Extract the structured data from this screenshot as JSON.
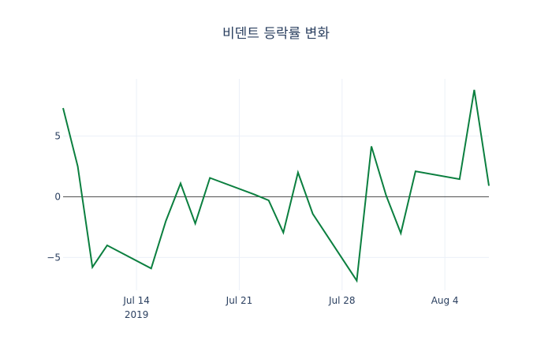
{
  "chart_data": {
    "type": "line",
    "title": "비덴트 등락률 변화",
    "xlabel": "",
    "ylabel": "",
    "x": [
      "2019-07-09",
      "2019-07-10",
      "2019-07-11",
      "2019-07-12",
      "2019-07-15",
      "2019-07-16",
      "2019-07-17",
      "2019-07-18",
      "2019-07-19",
      "2019-07-22",
      "2019-07-23",
      "2019-07-24",
      "2019-07-25",
      "2019-07-26",
      "2019-07-29",
      "2019-07-30",
      "2019-07-31",
      "2019-08-01",
      "2019-08-02",
      "2019-08-05",
      "2019-08-06",
      "2019-08-07"
    ],
    "series": [
      {
        "name": "등락률",
        "color": "#0b7f3f",
        "values": [
          7.3,
          2.5,
          -5.8,
          -4.0,
          -5.9,
          -2.0,
          1.1,
          -2.2,
          1.55,
          0.2,
          -0.3,
          -2.95,
          2.0,
          -1.4,
          -6.9,
          4.15,
          0.1,
          -3.0,
          2.1,
          1.45,
          8.8,
          0.9
        ]
      }
    ],
    "xlim": [
      "2019-07-09",
      "2019-08-07"
    ],
    "ylim": [
      -7.7,
      9.7
    ],
    "x_ticks": [
      {
        "date": "2019-07-14",
        "label": "Jul 14",
        "sublabel": "2019"
      },
      {
        "date": "2019-07-21",
        "label": "Jul 21",
        "sublabel": ""
      },
      {
        "date": "2019-07-28",
        "label": "Jul 28",
        "sublabel": ""
      },
      {
        "date": "2019-08-04",
        "label": "Aug 4",
        "sublabel": ""
      }
    ],
    "y_ticks": [
      {
        "value": 5,
        "label": "5"
      },
      {
        "value": 0,
        "label": "0"
      },
      {
        "value": -5,
        "label": "−5"
      }
    ],
    "grid": true,
    "zeroline": true,
    "legend": "none"
  }
}
